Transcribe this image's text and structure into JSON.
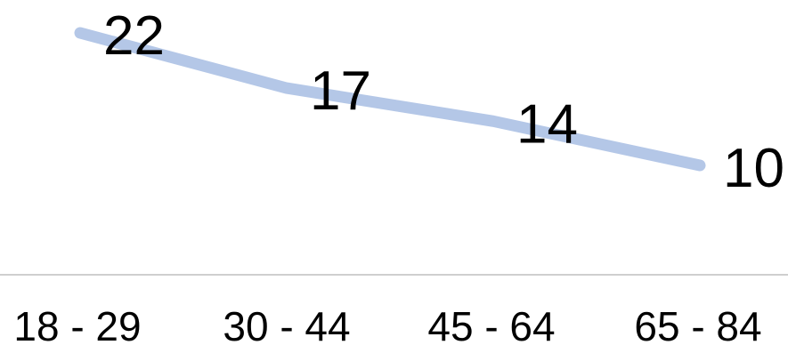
{
  "chart_data": {
    "type": "line",
    "categories": [
      "18 - 29",
      "30 - 44",
      "45 - 64",
      "65 - 84"
    ],
    "series": [
      {
        "values": [
          22,
          17,
          14,
          10
        ],
        "color": "#b4c7e7"
      }
    ],
    "data_labels": [
      "22",
      "17",
      "14",
      "10"
    ],
    "title": "",
    "xlabel": "",
    "ylabel": "",
    "ylim": [
      0,
      25
    ],
    "grid": false,
    "legend": "none",
    "axis_line_color": "#bfbfbf"
  }
}
